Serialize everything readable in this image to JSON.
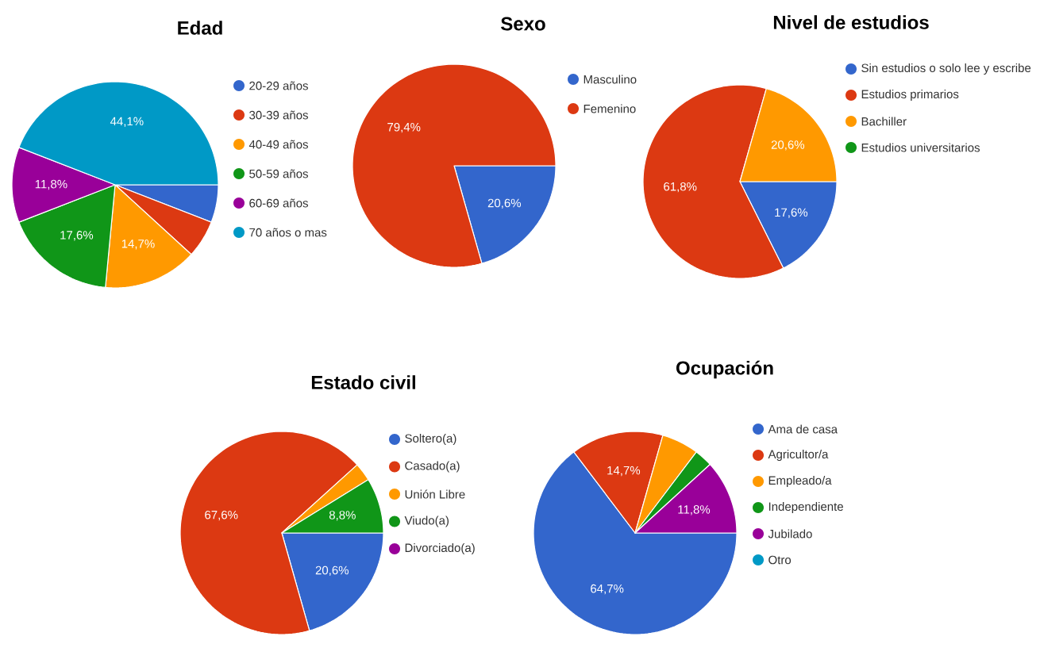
{
  "chart_data": [
    {
      "type": "pie",
      "title": "Edad",
      "categories": [
        "20-29 años",
        "30-39 años",
        "40-49 años",
        "50-59 años",
        "60-69 años",
        "70 años o mas"
      ],
      "values": [
        5.9,
        5.9,
        14.7,
        17.6,
        11.8,
        44.1
      ],
      "colors": [
        "#3366cc",
        "#dc3912",
        "#ff9900",
        "#109618",
        "#990099",
        "#0099c6"
      ],
      "value_labels": [
        null,
        null,
        "14,7%",
        "17,6%",
        "11,8%",
        "44,1%"
      ],
      "legend": "right"
    },
    {
      "type": "pie",
      "title": "Sexo",
      "categories": [
        "Masculino",
        "Femenino"
      ],
      "values": [
        20.6,
        79.4
      ],
      "colors": [
        "#3366cc",
        "#dc3912"
      ],
      "value_labels": [
        "20,6%",
        "79,4%"
      ],
      "legend": "right"
    },
    {
      "type": "pie",
      "title": "Nivel de estudios",
      "categories": [
        "Sin estudios o solo lee y escribe",
        "Estudios primarios",
        "Bachiller",
        "Estudios universitarios"
      ],
      "values": [
        17.6,
        61.8,
        20.6,
        0
      ],
      "colors": [
        "#3366cc",
        "#dc3912",
        "#ff9900",
        "#109618"
      ],
      "value_labels": [
        "17,6%",
        "61,8%",
        "20,6%",
        null
      ],
      "legend": "right"
    },
    {
      "type": "pie",
      "title": "Estado civil",
      "categories": [
        "Soltero(a)",
        "Casado(a)",
        "Unión Libre",
        "Viudo(a)",
        "Divorciado(a)"
      ],
      "values": [
        20.6,
        67.6,
        2.9,
        8.8,
        0
      ],
      "colors": [
        "#3366cc",
        "#dc3912",
        "#ff9900",
        "#109618",
        "#990099"
      ],
      "value_labels": [
        "20,6%",
        "67,6%",
        null,
        "8,8%",
        null
      ],
      "legend": "right"
    },
    {
      "type": "pie",
      "title": "Ocupación",
      "categories": [
        "Ama de casa",
        "Agricultor/a",
        "Empleado/a",
        "Independiente",
        "Jubilado",
        "Otro"
      ],
      "values": [
        64.7,
        14.7,
        5.9,
        2.9,
        11.8,
        0
      ],
      "colors": [
        "#3366cc",
        "#dc3912",
        "#ff9900",
        "#109618",
        "#990099",
        "#0099c6"
      ],
      "value_labels": [
        "64,7%",
        "14,7%",
        null,
        null,
        "11,8%",
        null
      ],
      "legend": "right"
    }
  ]
}
